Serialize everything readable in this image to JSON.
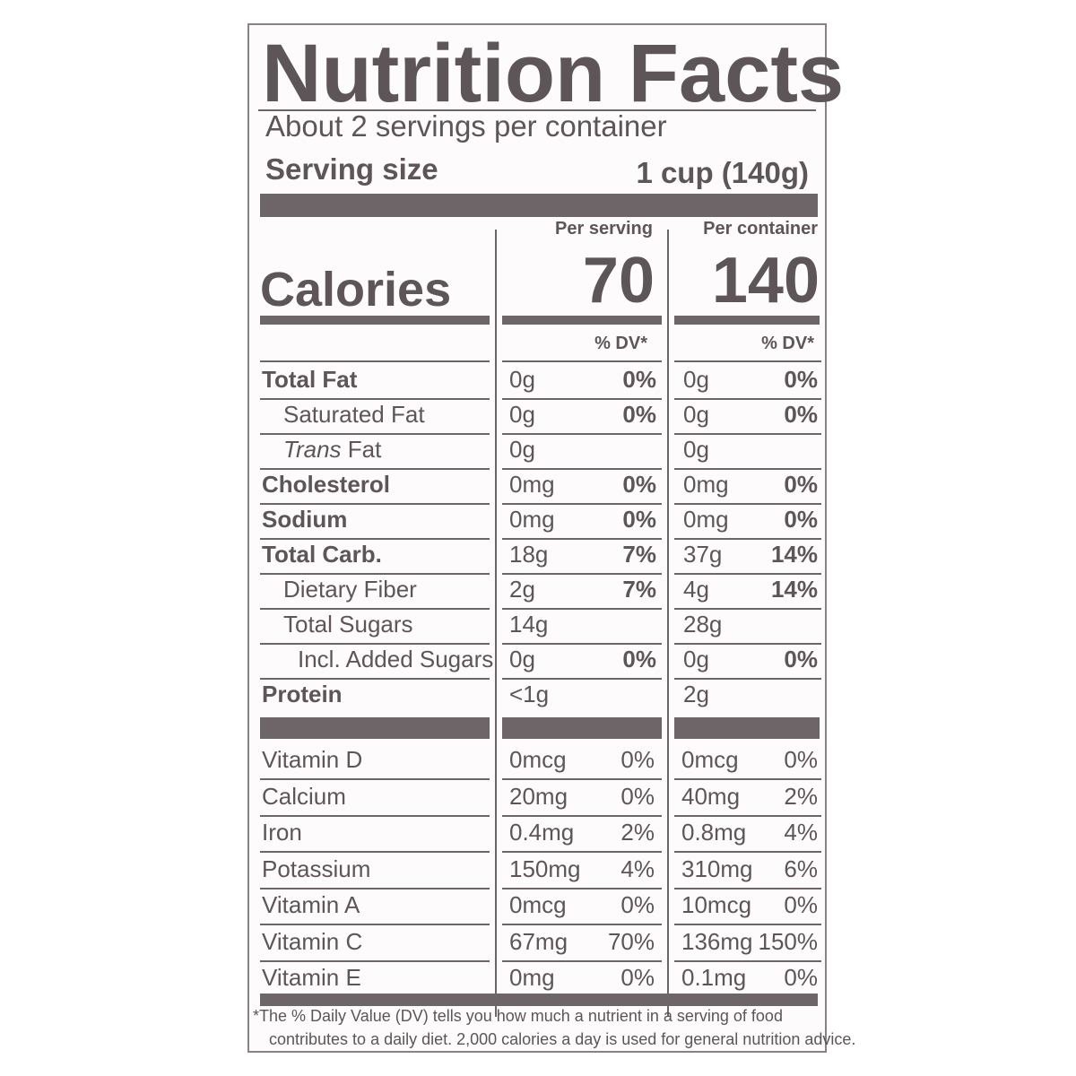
{
  "title": "Nutrition Facts",
  "servings_per_container": "About 2 servings per container",
  "serving_size": {
    "label": "Serving size",
    "value": "1 cup (140g)"
  },
  "columns": {
    "per_serving": "Per serving",
    "per_container": "Per container"
  },
  "calories": {
    "label": "Calories",
    "per_serving": "70",
    "per_container": "140"
  },
  "dv_header": "% DV*",
  "nutrients": [
    {
      "name": "Total Fat",
      "bold": true,
      "indent": 0,
      "serving_amt": "0g",
      "serving_dv": "0%",
      "container_amt": "0g",
      "container_dv": "0%"
    },
    {
      "name": "Saturated Fat",
      "bold": false,
      "indent": 1,
      "serving_amt": "0g",
      "serving_dv": "0%",
      "container_amt": "0g",
      "container_dv": "0%"
    },
    {
      "name_italic": "Trans",
      "name": " Fat",
      "bold": false,
      "indent": 1,
      "serving_amt": "0g",
      "serving_dv": "",
      "container_amt": "0g",
      "container_dv": ""
    },
    {
      "name": "Cholesterol",
      "bold": true,
      "indent": 0,
      "serving_amt": "0mg",
      "serving_dv": "0%",
      "container_amt": "0mg",
      "container_dv": "0%"
    },
    {
      "name": "Sodium",
      "bold": true,
      "indent": 0,
      "serving_amt": "0mg",
      "serving_dv": "0%",
      "container_amt": "0mg",
      "container_dv": "0%"
    },
    {
      "name": "Total Carb.",
      "bold": true,
      "indent": 0,
      "serving_amt": "18g",
      "serving_dv": "7%",
      "container_amt": "37g",
      "container_dv": "14%"
    },
    {
      "name": "Dietary Fiber",
      "bold": false,
      "indent": 1,
      "serving_amt": "2g",
      "serving_dv": "7%",
      "container_amt": "4g",
      "container_dv": "14%"
    },
    {
      "name": "Total Sugars",
      "bold": false,
      "indent": 1,
      "serving_amt": "14g",
      "serving_dv": "",
      "container_amt": "28g",
      "container_dv": ""
    },
    {
      "name": "Incl. Added Sugars",
      "bold": false,
      "indent": 2,
      "serving_amt": "0g",
      "serving_dv": "0%",
      "container_amt": "0g",
      "container_dv": "0%"
    },
    {
      "name": "Protein",
      "bold": true,
      "indent": 0,
      "serving_amt": "<1g",
      "serving_dv": "",
      "container_amt": "2g",
      "container_dv": ""
    }
  ],
  "vitamins": [
    {
      "name": "Vitamin D",
      "serving_amt": "0mcg",
      "serving_dv": "0%",
      "container_amt": "0mcg",
      "container_dv": "0%"
    },
    {
      "name": "Calcium",
      "serving_amt": "20mg",
      "serving_dv": "0%",
      "container_amt": "40mg",
      "container_dv": "2%"
    },
    {
      "name": "Iron",
      "serving_amt": "0.4mg",
      "serving_dv": "2%",
      "container_amt": "0.8mg",
      "container_dv": "4%"
    },
    {
      "name": "Potassium",
      "serving_amt": "150mg",
      "serving_dv": "4%",
      "container_amt": "310mg",
      "container_dv": "6%"
    },
    {
      "name": "Vitamin A",
      "serving_amt": "0mcg",
      "serving_dv": "0%",
      "container_amt": "10mcg",
      "container_dv": "0%"
    },
    {
      "name": "Vitamin C",
      "serving_amt": "67mg",
      "serving_dv": "70%",
      "container_amt": "136mg",
      "container_dv": "150%"
    },
    {
      "name": "Vitamin E",
      "serving_amt": "0mg",
      "serving_dv": "0%",
      "container_amt": "0.1mg",
      "container_dv": "0%"
    }
  ],
  "footnote": {
    "line1": "*The % Daily Value (DV) tells you how much a nutrient in a serving of food",
    "line2": "contributes to a daily diet. 2,000 calories a day is used for general nutrition advice."
  }
}
